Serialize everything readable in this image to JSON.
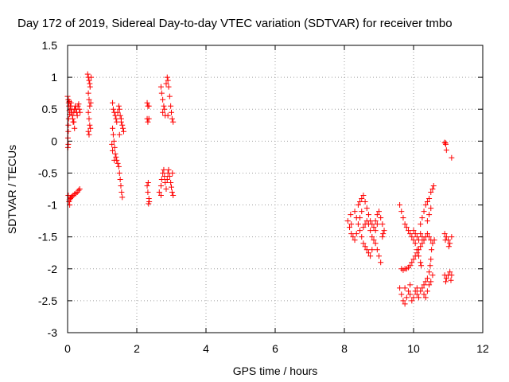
{
  "chart_data": {
    "type": "scatter",
    "title": "Day 172 of 2019, Sidereal Day-to-day VTEC variation (SDTVAR) for receiver tmbo",
    "xlabel": "GPS time / hours",
    "ylabel": "SDTVAR / TECUs",
    "xlim": [
      0,
      12
    ],
    "ylim": [
      -3,
      1.5
    ],
    "xticks": [
      0,
      2,
      4,
      6,
      8,
      10,
      12
    ],
    "yticks": [
      -3,
      -2.5,
      -2,
      -1.5,
      -1,
      -0.5,
      0,
      0.5,
      1,
      1.5
    ],
    "xtick_labels": [
      "0",
      "2",
      "4",
      "6",
      "8",
      "10",
      "12"
    ],
    "ytick_labels": [
      "-3",
      "-2.5",
      "-2",
      "-1.5",
      "-1",
      "-0.5",
      "0",
      "0.5",
      "1",
      "1.5"
    ],
    "grid": true,
    "marker": "+",
    "color": "#ff0000",
    "series": [
      {
        "name": "SDTVAR",
        "points": [
          [
            0.0,
            0.7
          ],
          [
            0.02,
            0.65
          ],
          [
            0.03,
            0.6
          ],
          [
            0.04,
            0.55
          ],
          [
            0.05,
            0.48
          ],
          [
            0.06,
            0.42
          ],
          [
            0.03,
            0.35
          ],
          [
            0.02,
            0.25
          ],
          [
            0.02,
            0.15
          ],
          [
            0.01,
            0.05
          ],
          [
            0.02,
            -0.05
          ],
          [
            0.01,
            -0.1
          ],
          [
            0.08,
            0.55
          ],
          [
            0.1,
            0.45
          ],
          [
            0.12,
            0.5
          ],
          [
            0.14,
            0.4
          ],
          [
            0.15,
            0.35
          ],
          [
            0.16,
            0.3
          ],
          [
            0.18,
            0.45
          ],
          [
            0.2,
            0.5
          ],
          [
            0.22,
            0.55
          ],
          [
            0.24,
            0.5
          ],
          [
            0.26,
            0.45
          ],
          [
            0.28,
            0.4
          ],
          [
            0.3,
            0.55
          ],
          [
            0.32,
            0.58
          ],
          [
            0.34,
            0.5
          ],
          [
            0.36,
            0.45
          ],
          [
            0.2,
            0.2
          ],
          [
            0.18,
            0.3
          ],
          [
            0.1,
            0.6
          ],
          [
            0.05,
            0.62
          ],
          [
            0.02,
            -0.85
          ],
          [
            0.04,
            -0.95
          ],
          [
            0.06,
            -1.0
          ],
          [
            0.05,
            -0.92
          ],
          [
            0.08,
            -0.9
          ],
          [
            0.1,
            -0.88
          ],
          [
            0.13,
            -0.87
          ],
          [
            0.16,
            -0.85
          ],
          [
            0.2,
            -0.83
          ],
          [
            0.24,
            -0.82
          ],
          [
            0.28,
            -0.8
          ],
          [
            0.32,
            -0.77
          ],
          [
            0.35,
            -0.75
          ],
          [
            0.58,
            1.05
          ],
          [
            0.6,
            1.0
          ],
          [
            0.62,
            0.95
          ],
          [
            0.64,
            0.9
          ],
          [
            0.65,
            0.85
          ],
          [
            0.6,
            0.75
          ],
          [
            0.62,
            0.65
          ],
          [
            0.64,
            0.55
          ],
          [
            0.6,
            0.45
          ],
          [
            0.62,
            0.35
          ],
          [
            0.64,
            0.25
          ],
          [
            0.6,
            0.15
          ],
          [
            0.62,
            0.1
          ],
          [
            0.66,
            0.2
          ],
          [
            0.68,
            1.0
          ],
          [
            0.67,
            0.6
          ],
          [
            1.3,
            0.6
          ],
          [
            1.32,
            0.5
          ],
          [
            1.35,
            0.45
          ],
          [
            1.38,
            0.4
          ],
          [
            1.4,
            0.35
          ],
          [
            1.42,
            0.3
          ],
          [
            1.45,
            0.45
          ],
          [
            1.48,
            0.55
          ],
          [
            1.5,
            0.5
          ],
          [
            1.52,
            0.4
          ],
          [
            1.55,
            0.35
          ],
          [
            1.58,
            0.25
          ],
          [
            1.6,
            0.2
          ],
          [
            1.62,
            0.15
          ],
          [
            1.55,
            0.3
          ],
          [
            1.5,
            0.1
          ],
          [
            1.3,
            0.2
          ],
          [
            1.32,
            0.1
          ],
          [
            1.34,
            0.0
          ],
          [
            1.36,
            -0.1
          ],
          [
            1.38,
            -0.2
          ],
          [
            1.4,
            -0.25
          ],
          [
            1.42,
            -0.3
          ],
          [
            1.45,
            -0.35
          ],
          [
            1.48,
            -0.4
          ],
          [
            1.5,
            -0.5
          ],
          [
            1.52,
            -0.6
          ],
          [
            1.54,
            -0.7
          ],
          [
            1.56,
            -0.8
          ],
          [
            1.58,
            -0.88
          ],
          [
            1.35,
            -0.3
          ],
          [
            1.3,
            -0.15
          ],
          [
            1.28,
            -0.05
          ],
          [
            2.3,
            0.6
          ],
          [
            2.32,
            0.55
          ],
          [
            2.35,
            0.55
          ],
          [
            2.3,
            0.35
          ],
          [
            2.32,
            0.3
          ],
          [
            2.35,
            0.35
          ],
          [
            2.3,
            -0.7
          ],
          [
            2.32,
            -0.8
          ],
          [
            2.35,
            -0.9
          ],
          [
            2.34,
            -0.98
          ],
          [
            2.36,
            -0.95
          ],
          [
            2.33,
            -0.65
          ],
          [
            2.7,
            0.85
          ],
          [
            2.72,
            0.75
          ],
          [
            2.75,
            0.65
          ],
          [
            2.78,
            0.55
          ],
          [
            2.8,
            0.5
          ],
          [
            2.82,
            0.4
          ],
          [
            2.85,
            0.9
          ],
          [
            2.88,
            1.0
          ],
          [
            2.9,
            0.95
          ],
          [
            2.92,
            0.85
          ],
          [
            2.95,
            0.7
          ],
          [
            2.98,
            0.55
          ],
          [
            3.0,
            0.45
          ],
          [
            3.02,
            0.35
          ],
          [
            3.05,
            0.3
          ],
          [
            2.75,
            0.45
          ],
          [
            2.9,
            0.4
          ],
          [
            2.65,
            -0.8
          ],
          [
            2.7,
            -0.7
          ],
          [
            2.72,
            -0.6
          ],
          [
            2.75,
            -0.5
          ],
          [
            2.78,
            -0.45
          ],
          [
            2.8,
            -0.55
          ],
          [
            2.82,
            -0.65
          ],
          [
            2.85,
            -0.75
          ],
          [
            2.88,
            -0.6
          ],
          [
            2.9,
            -0.5
          ],
          [
            2.92,
            -0.45
          ],
          [
            2.95,
            -0.55
          ],
          [
            2.98,
            -0.65
          ],
          [
            3.0,
            -0.72
          ],
          [
            3.02,
            -0.8
          ],
          [
            3.05,
            -0.85
          ],
          [
            3.03,
            -0.5
          ],
          [
            2.7,
            -0.85
          ],
          [
            8.1,
            -1.25
          ],
          [
            8.15,
            -1.35
          ],
          [
            8.2,
            -1.45
          ],
          [
            8.25,
            -1.5
          ],
          [
            8.2,
            -1.3
          ],
          [
            8.18,
            -1.15
          ],
          [
            8.3,
            -1.1
          ],
          [
            8.35,
            -1.2
          ],
          [
            8.4,
            -1.3
          ],
          [
            8.45,
            -1.4
          ],
          [
            8.5,
            -1.5
          ],
          [
            8.55,
            -1.6
          ],
          [
            8.6,
            -1.65
          ],
          [
            8.65,
            -1.7
          ],
          [
            8.7,
            -1.75
          ],
          [
            8.75,
            -1.8
          ],
          [
            8.8,
            -1.7
          ],
          [
            8.85,
            -1.55
          ],
          [
            8.9,
            -1.4
          ],
          [
            8.95,
            -1.3
          ],
          [
            8.4,
            -1.0
          ],
          [
            8.45,
            -0.95
          ],
          [
            8.5,
            -0.9
          ],
          [
            8.55,
            -0.85
          ],
          [
            8.6,
            -0.95
          ],
          [
            8.65,
            -1.05
          ],
          [
            8.7,
            -1.15
          ],
          [
            8.75,
            -1.25
          ],
          [
            8.8,
            -1.3
          ],
          [
            8.85,
            -1.35
          ],
          [
            8.9,
            -1.25
          ],
          [
            8.95,
            -1.15
          ],
          [
            9.0,
            -1.1
          ],
          [
            9.05,
            -1.2
          ],
          [
            9.1,
            -1.3
          ],
          [
            9.15,
            -1.4
          ],
          [
            8.55,
            -1.35
          ],
          [
            8.6,
            -1.3
          ],
          [
            8.65,
            -1.25
          ],
          [
            8.7,
            -1.3
          ],
          [
            8.75,
            -1.4
          ],
          [
            8.8,
            -1.5
          ],
          [
            8.9,
            -1.6
          ],
          [
            8.95,
            -1.7
          ],
          [
            9.0,
            -1.8
          ],
          [
            9.05,
            -1.9
          ],
          [
            9.1,
            -1.5
          ],
          [
            9.12,
            -1.45
          ],
          [
            8.5,
            -1.1
          ],
          [
            8.45,
            -1.2
          ],
          [
            8.35,
            -1.45
          ],
          [
            8.3,
            -1.55
          ],
          [
            9.6,
            -1.0
          ],
          [
            9.65,
            -1.1
          ],
          [
            9.7,
            -1.2
          ],
          [
            9.75,
            -1.3
          ],
          [
            9.8,
            -1.35
          ],
          [
            9.85,
            -1.4
          ],
          [
            9.9,
            -1.45
          ],
          [
            9.95,
            -1.5
          ],
          [
            10.0,
            -1.55
          ],
          [
            10.05,
            -1.6
          ],
          [
            10.1,
            -1.7
          ],
          [
            10.15,
            -1.8
          ],
          [
            10.2,
            -1.9
          ],
          [
            10.22,
            -1.95
          ],
          [
            9.65,
            -2.0
          ],
          [
            9.7,
            -2.02
          ],
          [
            9.75,
            -2.0
          ],
          [
            9.8,
            -2.0
          ],
          [
            9.85,
            -1.98
          ],
          [
            9.9,
            -1.95
          ],
          [
            9.95,
            -1.9
          ],
          [
            10.0,
            -1.85
          ],
          [
            10.05,
            -1.8
          ],
          [
            10.1,
            -1.75
          ],
          [
            10.15,
            -1.7
          ],
          [
            10.2,
            -1.65
          ],
          [
            10.25,
            -1.6
          ],
          [
            10.3,
            -1.55
          ],
          [
            9.6,
            -2.3
          ],
          [
            9.65,
            -2.4
          ],
          [
            9.7,
            -2.5
          ],
          [
            9.75,
            -2.55
          ],
          [
            9.8,
            -2.45
          ],
          [
            9.85,
            -2.35
          ],
          [
            9.9,
            -2.4
          ],
          [
            9.95,
            -2.5
          ],
          [
            10.0,
            -2.45
          ],
          [
            10.05,
            -2.35
          ],
          [
            10.1,
            -2.4
          ],
          [
            10.15,
            -2.45
          ],
          [
            10.2,
            -2.35
          ],
          [
            10.25,
            -2.3
          ],
          [
            10.3,
            -2.4
          ],
          [
            10.35,
            -2.45
          ],
          [
            10.4,
            -2.35
          ],
          [
            10.45,
            -2.25
          ],
          [
            10.5,
            -2.2
          ],
          [
            10.55,
            -2.1
          ],
          [
            9.75,
            -2.3
          ],
          [
            9.9,
            -2.25
          ],
          [
            10.1,
            -2.3
          ],
          [
            10.0,
            -1.4
          ],
          [
            10.05,
            -1.45
          ],
          [
            10.1,
            -1.5
          ],
          [
            10.15,
            -1.55
          ],
          [
            10.2,
            -1.45
          ],
          [
            10.25,
            -1.5
          ],
          [
            10.3,
            -1.55
          ],
          [
            10.35,
            -1.5
          ],
          [
            10.4,
            -1.45
          ],
          [
            10.45,
            -1.5
          ],
          [
            10.5,
            -1.55
          ],
          [
            10.55,
            -1.6
          ],
          [
            10.6,
            -1.55
          ],
          [
            10.52,
            -1.7
          ],
          [
            10.5,
            -1.85
          ],
          [
            10.48,
            -1.95
          ],
          [
            10.45,
            -2.05
          ],
          [
            10.4,
            -2.15
          ],
          [
            10.35,
            -2.2
          ],
          [
            10.3,
            -2.25
          ],
          [
            10.2,
            -1.3
          ],
          [
            10.25,
            -1.2
          ],
          [
            10.3,
            -1.1
          ],
          [
            10.35,
            -1.0
          ],
          [
            10.4,
            -0.95
          ],
          [
            10.45,
            -0.9
          ],
          [
            10.5,
            -0.8
          ],
          [
            10.55,
            -0.75
          ],
          [
            10.58,
            -0.7
          ],
          [
            10.4,
            -1.25
          ],
          [
            10.45,
            -1.15
          ],
          [
            10.5,
            -1.05
          ],
          [
            10.9,
            -0.02
          ],
          [
            10.92,
            -0.03
          ],
          [
            10.93,
            -0.05
          ],
          [
            10.95,
            -0.14
          ],
          [
            11.1,
            -0.26
          ],
          [
            10.9,
            -1.45
          ],
          [
            10.95,
            -1.5
          ],
          [
            11.0,
            -1.55
          ],
          [
            11.05,
            -1.6
          ],
          [
            11.1,
            -1.5
          ],
          [
            10.92,
            -1.55
          ],
          [
            11.02,
            -1.65
          ],
          [
            10.9,
            -2.1
          ],
          [
            10.95,
            -2.15
          ],
          [
            11.0,
            -2.1
          ],
          [
            11.05,
            -2.05
          ],
          [
            11.1,
            -2.1
          ],
          [
            10.93,
            -2.2
          ],
          [
            11.08,
            -2.18
          ]
        ]
      }
    ]
  }
}
